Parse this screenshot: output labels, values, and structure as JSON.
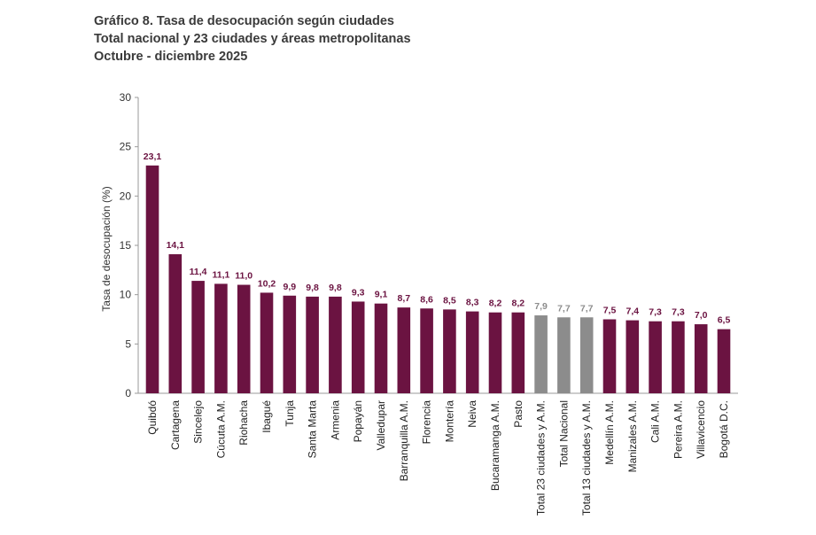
{
  "titles": {
    "line1": "Gráfico 8. Tasa de desocupación según ciudades",
    "line2": "Total nacional y 23 ciudades y áreas metropolitanas",
    "line3": "Octubre - diciembre 2025"
  },
  "colors": {
    "city": "#6b1341",
    "aggregate": "#8c8c8c",
    "city_label": "#6b1341",
    "aggregate_label": "#8c8c8c"
  },
  "chart_data": {
    "type": "bar",
    "title": "Gráfico 8. Tasa de desocupación según ciudades",
    "xlabel": "",
    "ylabel": "Tasa de desocupación (%)",
    "ylim": [
      0,
      30
    ],
    "yticks": [
      0,
      5,
      10,
      15,
      20,
      25,
      30
    ],
    "grid": false,
    "categories": [
      "Quibdó",
      "Cartagena",
      "Sincelejo",
      "Cúcuta A.M.",
      "Riohacha",
      "Ibagué",
      "Tunja",
      "Santa Marta",
      "Armenia",
      "Popayán",
      "Valledupar",
      "Barranquilla A.M.",
      "Florencia",
      "Montería",
      "Neiva",
      "Bucaramanga A.M.",
      "Pasto",
      "Total 23 ciudades y A.M.",
      "Total Nacional",
      "Total 13 ciudades y A.M.",
      "Medellín A.M.",
      "Manizales A.M.",
      "Cali A.M.",
      "Pereira A.M.",
      "Villavicencio",
      "Bogotá D.C."
    ],
    "values": [
      23.1,
      14.1,
      11.4,
      11.1,
      11.0,
      10.2,
      9.9,
      9.8,
      9.8,
      9.3,
      9.1,
      8.7,
      8.6,
      8.5,
      8.3,
      8.2,
      8.2,
      7.9,
      7.7,
      7.7,
      7.5,
      7.4,
      7.3,
      7.3,
      7.0,
      6.5
    ],
    "value_labels": [
      "23,1",
      "14,1",
      "11,4",
      "11,1",
      "11,0",
      "10,2",
      "9,9",
      "9,8",
      "9,8",
      "9,3",
      "9,1",
      "8,7",
      "8,6",
      "8,5",
      "8,3",
      "8,2",
      "8,2",
      "7,9",
      "7,7",
      "7,7",
      "7,5",
      "7,4",
      "7,3",
      "7,3",
      "7,0",
      "6,5"
    ],
    "aggregate_categories": [
      "Total 23 ciudades y A.M.",
      "Total Nacional",
      "Total 13 ciudades y A.M."
    ]
  }
}
